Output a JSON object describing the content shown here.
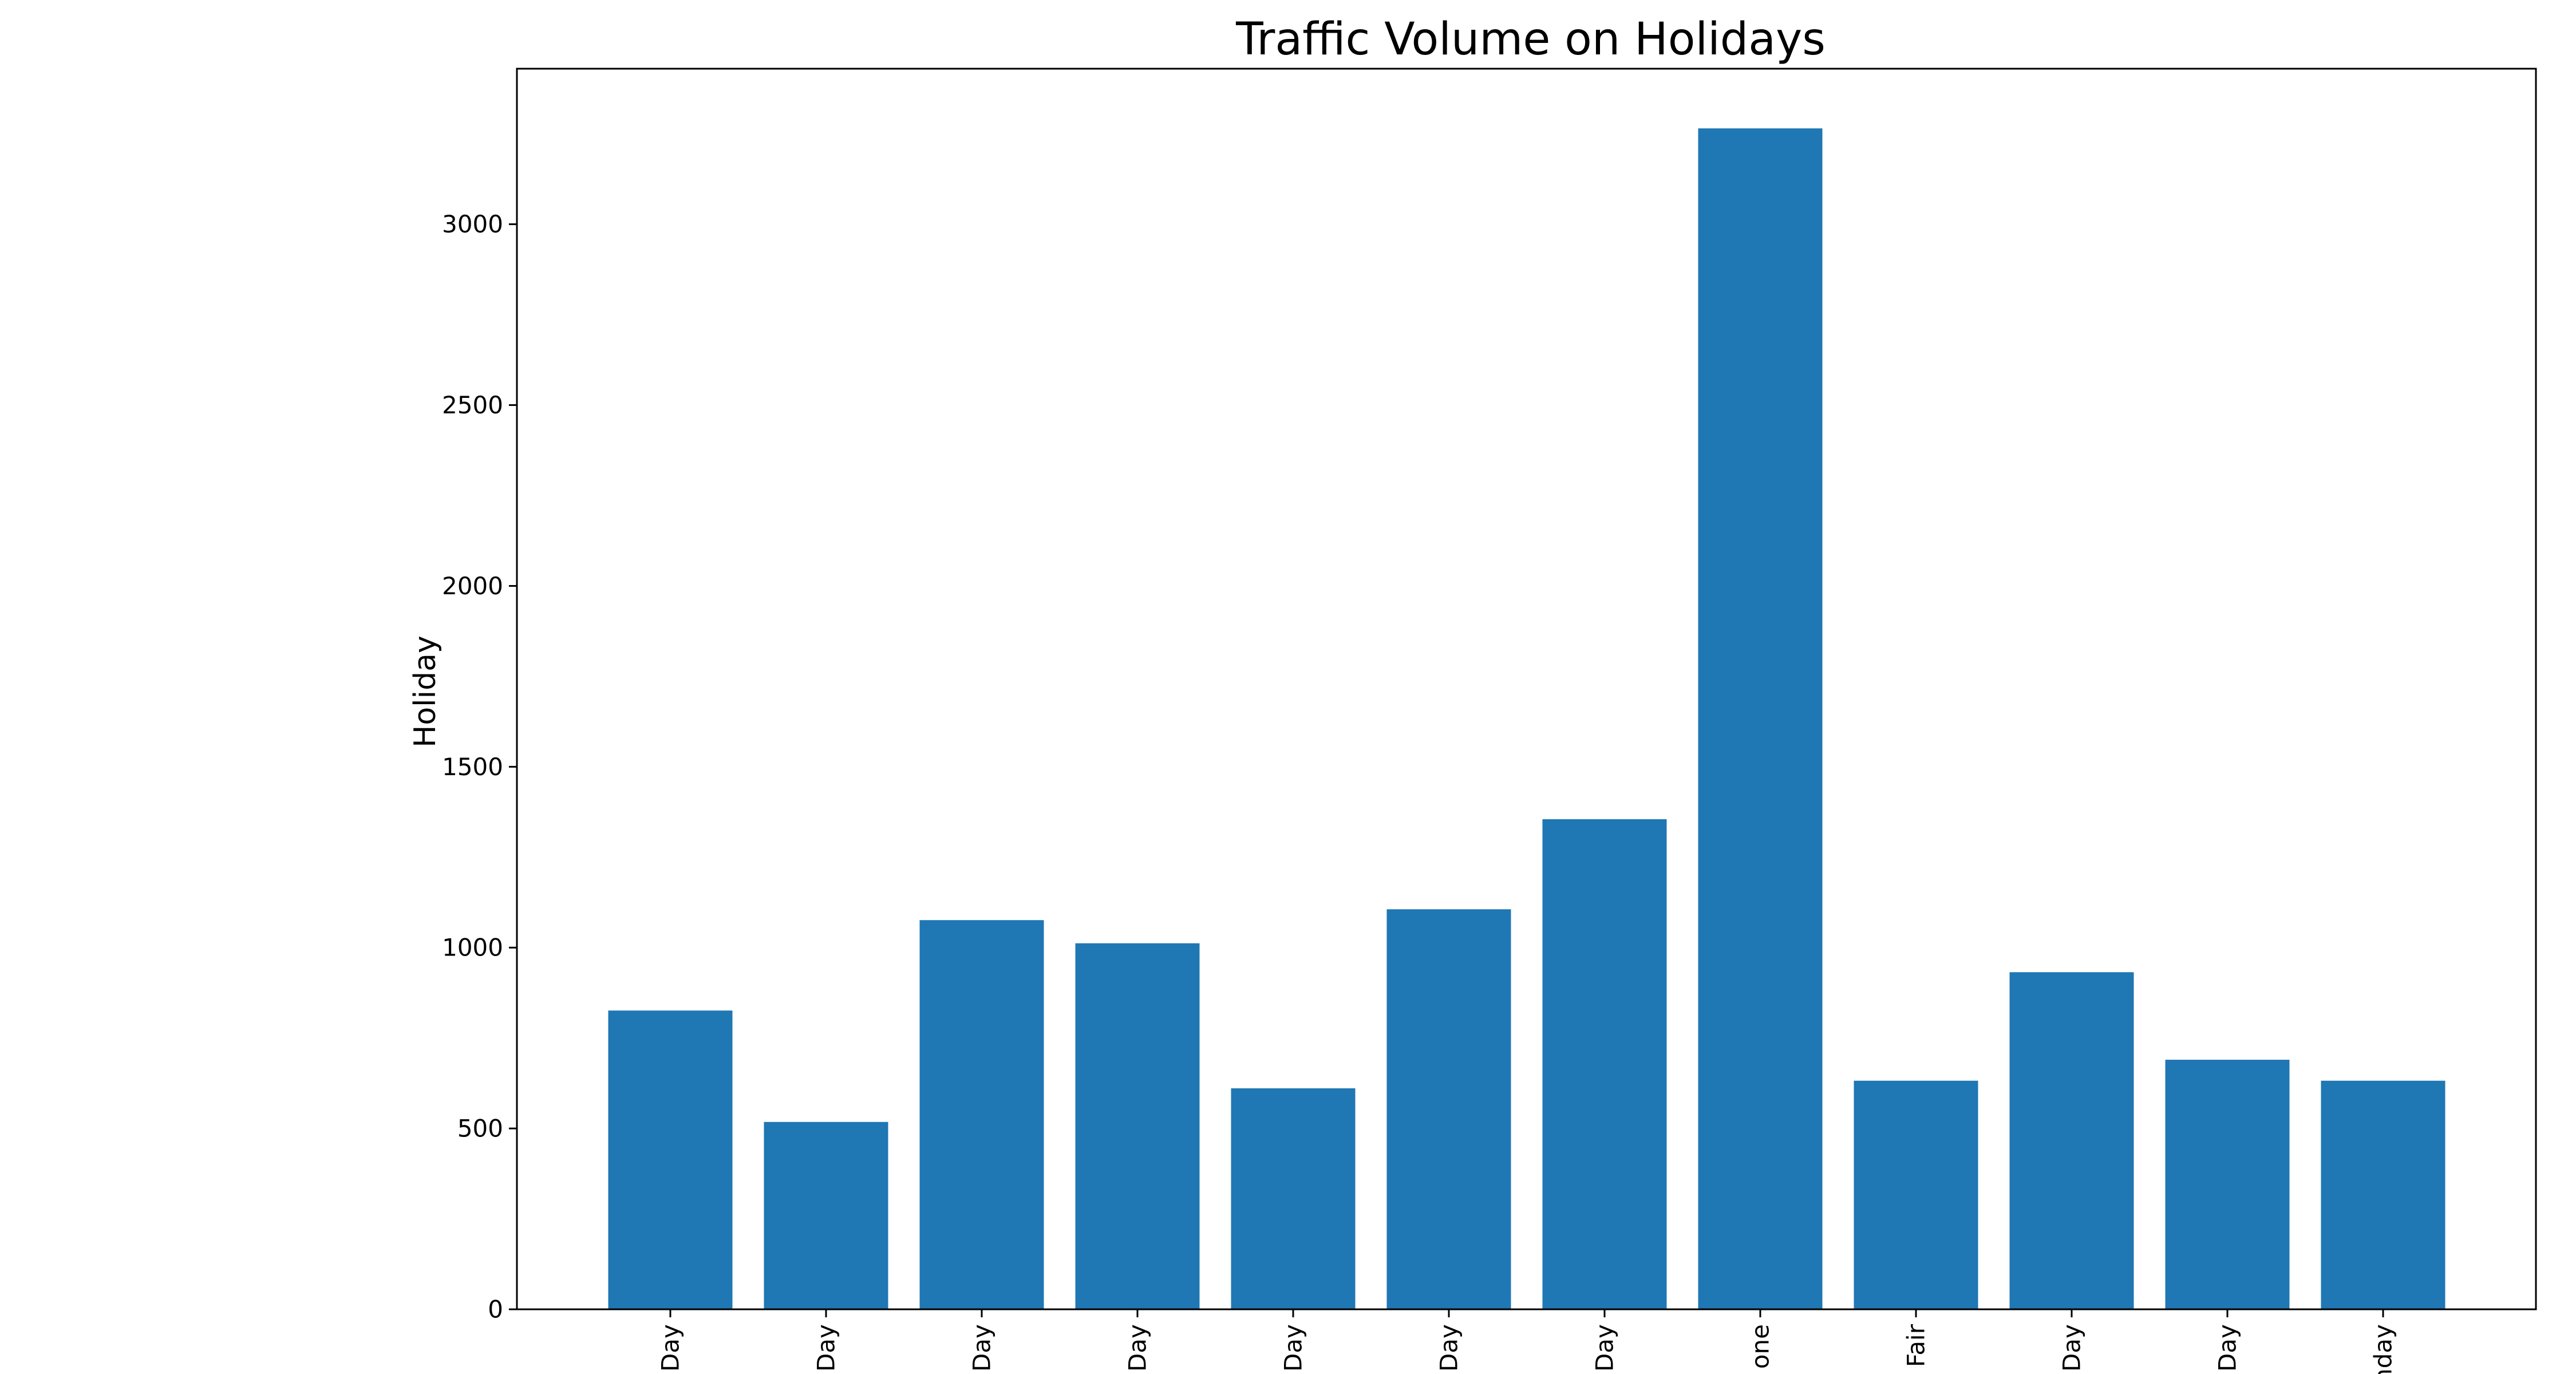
{
  "chart_data": {
    "type": "bar",
    "title": "Traffic Volume on Holidays",
    "xlabel": "",
    "ylabel": "Holiday",
    "categories": [
      "Day",
      "Day",
      "Day",
      "Day",
      "Day",
      "Day",
      "Day",
      "one",
      "Fair",
      "Day",
      "Day",
      "nday"
    ],
    "values": [
      826,
      518,
      1076,
      1012,
      611,
      1106,
      1355,
      3265,
      632,
      932,
      690,
      632
    ],
    "ylim": [
      0,
      3430
    ],
    "yticks": [
      "0",
      "500",
      "1000",
      "1500",
      "2000",
      "2500",
      "3000"
    ],
    "grid": false,
    "legend": "none",
    "bar_color": "#1f77b4"
  }
}
